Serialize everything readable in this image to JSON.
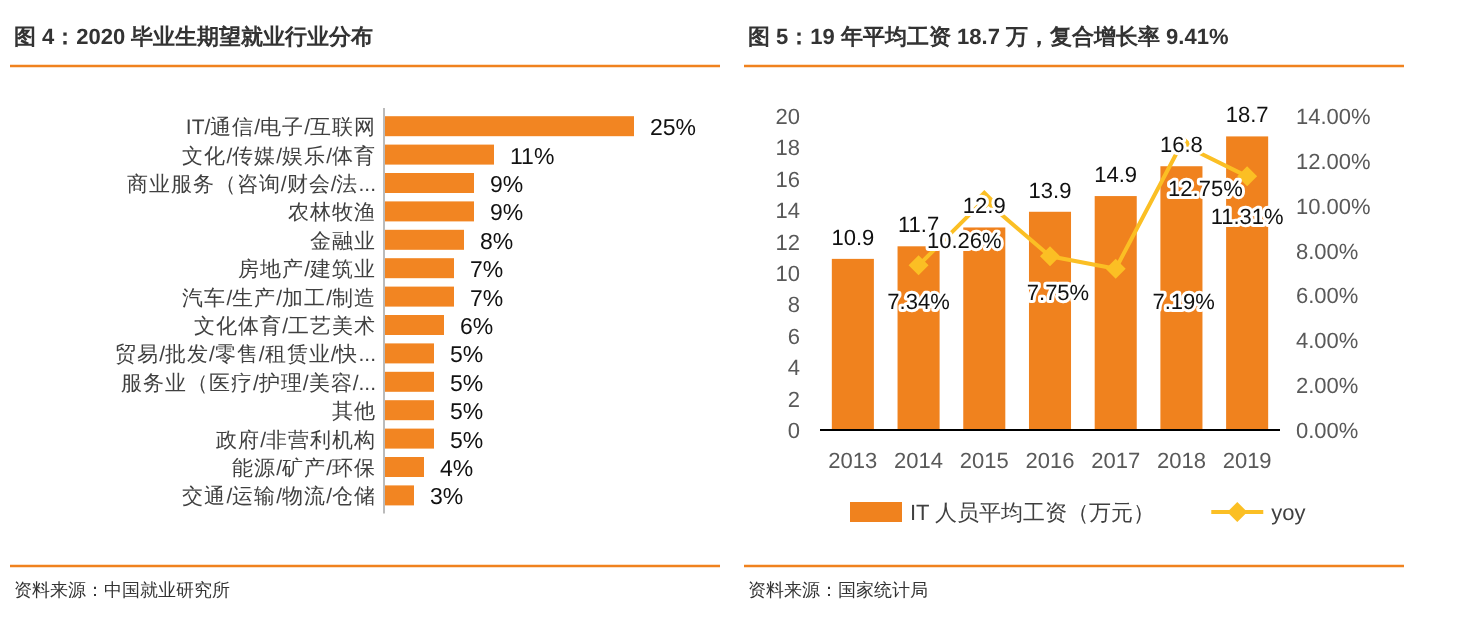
{
  "chart_data": [
    {
      "type": "bar",
      "orientation": "horizontal",
      "title": "图 4：2020 毕业生期望就业行业分布",
      "categories": [
        "IT/通信/电子/互联网",
        "文化/传媒/娱乐/体育",
        "商业服务（咨询/财会/法...",
        "农林牧渔",
        "金融业",
        "房地产/建筑业",
        "汽车/生产/加工/制造",
        "文化体育/工艺美术",
        "贸易/批发/零售/租赁业/快...",
        "服务业（医疗/护理/美容/...",
        "其他",
        "政府/非营利机构",
        "能源/矿产/环保",
        "交通/运输/物流/仓储"
      ],
      "values": [
        25,
        11,
        9,
        9,
        8,
        7,
        7,
        6,
        5,
        5,
        5,
        5,
        4,
        3
      ],
      "value_labels": [
        "25%",
        "11%",
        "9%",
        "9%",
        "8%",
        "7%",
        "7%",
        "6%",
        "5%",
        "5%",
        "5%",
        "5%",
        "4%",
        "3%"
      ],
      "color": "#f28522",
      "xlim": [
        0,
        25
      ],
      "tick_labels": "y",
      "annotations": [
        "资料来源：中国就业研究所"
      ]
    },
    {
      "type": "bar",
      "title": "图 5：19 年平均工资 18.7 万，复合增长率 9.41%",
      "categories": [
        "2013",
        "2014",
        "2015",
        "2016",
        "2017",
        "2018",
        "2019"
      ],
      "series": [
        {
          "name": "IT 人员平均工资（万元）",
          "type": "bar",
          "color": "#f0821e",
          "values": [
            10.9,
            11.7,
            12.9,
            13.9,
            14.9,
            16.8,
            18.7
          ]
        },
        {
          "name": "yoy",
          "type": "line",
          "axis": "y2",
          "color": "#fbbf24",
          "marker": "diamond",
          "values": [
            null,
            7.34,
            10.26,
            7.75,
            7.19,
            12.75,
            11.31
          ],
          "value_labels": [
            null,
            "7.34%",
            "10.26%",
            "7.75%",
            "7.19%",
            "12.75%",
            "11.31%"
          ]
        }
      ],
      "data_labels": true,
      "ylim": [
        0,
        20
      ],
      "yticks": [
        0,
        2,
        4,
        6,
        8,
        10,
        12,
        14,
        16,
        18,
        20
      ],
      "y2lim": [
        0,
        14
      ],
      "y2ticks": [
        {
          "value": 0,
          "label": "0.00%"
        },
        {
          "value": 2,
          "label": "2.00%"
        },
        {
          "value": 4,
          "label": "4.00%"
        },
        {
          "value": 6,
          "label": "6.00%"
        },
        {
          "value": 8,
          "label": "8.00%"
        },
        {
          "value": 10,
          "label": "10.00%"
        },
        {
          "value": 12,
          "label": "12.00%"
        },
        {
          "value": 14,
          "label": "14.00%"
        }
      ],
      "legend": "bottom",
      "grid": false,
      "annotations": [
        "资料来源：国家统计局"
      ]
    }
  ]
}
